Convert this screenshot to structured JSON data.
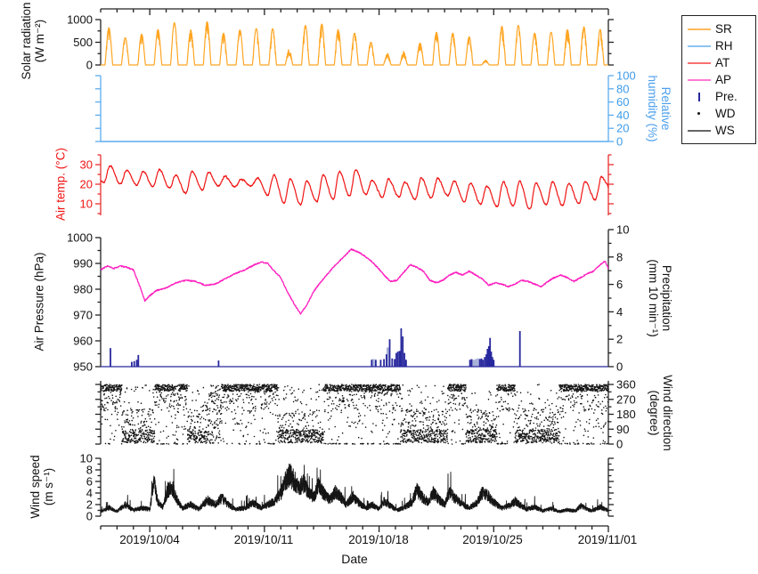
{
  "figure_title": "",
  "colors": {
    "sr": "#FFA522",
    "rh": "#5CACF0",
    "at": "#F01414",
    "ap": "#FF1FBF",
    "precip": "#28289E",
    "precip_light": "#A9B2D8",
    "wd": "#151515",
    "ws": "#151515",
    "axis": "#222222"
  },
  "axes_titles": {
    "sr_line1": "Solar radiation",
    "sr_line2": "(W m⁻²)",
    "rh_line1": "Relative",
    "rh_line2": "humidity (%)",
    "at": "Air temp. (°C)",
    "ap": "Air Pressure (hPa)",
    "pre_line1": "Precipitation",
    "pre_line2": "(mm 10 min⁻¹)",
    "wd_line1": "Wind direction",
    "wd_line2": "(degree)",
    "ws_line1": "Wind speed",
    "ws_line2": "(m s⁻¹)",
    "x": "Date"
  },
  "legend": {
    "items": [
      {
        "label": "SR",
        "marker": "line",
        "color": "#FFB85C"
      },
      {
        "label": "RH",
        "marker": "line",
        "color": "#8CC4F2"
      },
      {
        "label": "AT",
        "marker": "line",
        "color": "#F87070"
      },
      {
        "label": "AP",
        "marker": "line",
        "color": "#FF7AD4"
      },
      {
        "label": "Pre.",
        "marker": "vbar",
        "color": "#28289E"
      },
      {
        "label": "WD",
        "marker": "dot",
        "color": "#151515"
      },
      {
        "label": "WS",
        "marker": "line",
        "color": "#666666"
      }
    ]
  },
  "chart_data": {
    "type": "multi-panel-line",
    "x_axis": {
      "label": "Date",
      "start_date": "2019/10/01",
      "end_date": "2019/11/01",
      "tick_labels": [
        "2019/10/04",
        "2019/10/11",
        "2019/10/18",
        "2019/10/25",
        "2019/11/01"
      ],
      "tick_days": [
        3,
        10,
        17,
        24,
        31
      ],
      "span_days": 31,
      "minor_tick_interval_days": 1
    },
    "panels": {
      "solar_radiation": {
        "label": "Solar radiation (W m⁻²)",
        "ylim": [
          0,
          1000
        ],
        "yticks": [
          0,
          500,
          1000
        ],
        "yticks_minor": [
          250,
          750
        ],
        "axis_side": "left",
        "description": "Diurnal solar radiation peaks, one per day, zero at night",
        "daily_peak": [
          820,
          600,
          680,
          780,
          930,
          770,
          950,
          700,
          770,
          800,
          800,
          350,
          870,
          900,
          780,
          700,
          500,
          260,
          300,
          480,
          720,
          700,
          620,
          110,
          850,
          870,
          700,
          720,
          780,
          840,
          780
        ]
      },
      "relative_humidity": {
        "label": "Relative humidity (%)",
        "ylim": [
          0,
          100
        ],
        "yticks": [
          0,
          20,
          40,
          60,
          80,
          100
        ],
        "axis_side": "right",
        "series_constant": 0,
        "description": "Flat line at 0 % across the whole period"
      },
      "air_temperature": {
        "label": "Air temp. (°C)",
        "ylim_ticks": [
          10,
          20,
          30
        ],
        "yticks_minor": [
          5,
          15,
          25,
          35
        ],
        "axis_side": "left",
        "daily_min": [
          21,
          20,
          19.5,
          19,
          18,
          15.5,
          17,
          19,
          18.5,
          19,
          14.5,
          10.5,
          9.5,
          11,
          12.5,
          14,
          14.5,
          13.5,
          13.5,
          12.5,
          13,
          14,
          11,
          10,
          8.5,
          9,
          7,
          9.5,
          9,
          10,
          12
        ],
        "daily_max": [
          29.5,
          27,
          26.5,
          27.5,
          24.5,
          26.5,
          26,
          24,
          22.5,
          23,
          24.5,
          22.5,
          21.5,
          24.5,
          26.5,
          27.5,
          22,
          22.5,
          21,
          23,
          23,
          21.5,
          20.5,
          19,
          21,
          21.5,
          20.5,
          21,
          20.5,
          21.5,
          23.5
        ]
      },
      "air_pressure": {
        "label": "Air Pressure (hPa)",
        "ylim": [
          950,
          1000
        ],
        "yticks": [
          950,
          960,
          970,
          980,
          990,
          1000
        ],
        "axis_side": "left",
        "control_points": [
          [
            0,
            987.5
          ],
          [
            0.4,
            989
          ],
          [
            0.8,
            988
          ],
          [
            1.2,
            989
          ],
          [
            1.6,
            988.5
          ],
          [
            2,
            987.5
          ],
          [
            2.4,
            981
          ],
          [
            2.7,
            975.5
          ],
          [
            3,
            977.5
          ],
          [
            3.4,
            979.5
          ],
          [
            4,
            980.5
          ],
          [
            4.6,
            982.5
          ],
          [
            5.2,
            983.5
          ],
          [
            5.8,
            983
          ],
          [
            6.4,
            981.5
          ],
          [
            7,
            982
          ],
          [
            7.6,
            984
          ],
          [
            8.2,
            986
          ],
          [
            8.8,
            987.5
          ],
          [
            9.4,
            989.5
          ],
          [
            9.8,
            990.5
          ],
          [
            10.2,
            990
          ],
          [
            10.6,
            987
          ],
          [
            11,
            984.5
          ],
          [
            11.4,
            979
          ],
          [
            11.8,
            974.5
          ],
          [
            12.2,
            970.5
          ],
          [
            12.6,
            974
          ],
          [
            13,
            979
          ],
          [
            13.4,
            982.5
          ],
          [
            13.8,
            985.5
          ],
          [
            14.2,
            988.5
          ],
          [
            14.6,
            991
          ],
          [
            15,
            993.5
          ],
          [
            15.3,
            995.5
          ],
          [
            15.7,
            994.5
          ],
          [
            16.1,
            993
          ],
          [
            16.5,
            991
          ],
          [
            16.9,
            988.5
          ],
          [
            17.3,
            985.5
          ],
          [
            17.7,
            983
          ],
          [
            18.1,
            983.5
          ],
          [
            18.5,
            986.5
          ],
          [
            18.9,
            989.5
          ],
          [
            19.3,
            988.5
          ],
          [
            19.7,
            987
          ],
          [
            20.1,
            983.5
          ],
          [
            20.5,
            982.5
          ],
          [
            20.9,
            983.5
          ],
          [
            21.3,
            985.5
          ],
          [
            21.7,
            986.5
          ],
          [
            22.1,
            985.5
          ],
          [
            22.5,
            987
          ],
          [
            22.9,
            985.5
          ],
          [
            23.3,
            984
          ],
          [
            23.7,
            981.5
          ],
          [
            24.1,
            982.5
          ],
          [
            24.5,
            982
          ],
          [
            24.9,
            981
          ],
          [
            25.3,
            982
          ],
          [
            25.7,
            983.5
          ],
          [
            26.1,
            983
          ],
          [
            26.5,
            982
          ],
          [
            26.9,
            981
          ],
          [
            27.3,
            983
          ],
          [
            27.7,
            984.5
          ],
          [
            28.1,
            985.5
          ],
          [
            28.5,
            984.5
          ],
          [
            28.9,
            983
          ],
          [
            29.3,
            984.5
          ],
          [
            29.7,
            986
          ],
          [
            30.1,
            987
          ],
          [
            30.5,
            989.5
          ],
          [
            30.8,
            991
          ],
          [
            31,
            988
          ]
        ]
      },
      "precipitation": {
        "label": "Precipitation (mm 10 min⁻¹)",
        "ylim": [
          0,
          10
        ],
        "yticks": [
          0,
          2,
          4,
          6,
          8,
          10
        ],
        "yticks_minor": [
          1,
          3,
          5,
          7,
          9
        ],
        "axis_side": "right",
        "events_day_mm_light": [
          [
            0.6,
            1.35,
            0
          ],
          [
            1.9,
            0.35,
            0
          ],
          [
            2.05,
            0.4,
            0
          ],
          [
            2.2,
            0.5,
            0
          ],
          [
            2.3,
            0.85,
            0
          ],
          [
            7.2,
            0.45,
            0
          ],
          [
            16.55,
            0.5,
            0
          ],
          [
            16.65,
            0.55,
            1
          ],
          [
            16.8,
            0.5,
            0
          ],
          [
            17.1,
            0.5,
            0
          ],
          [
            17.3,
            0.55,
            0
          ],
          [
            17.45,
            0.9,
            0
          ],
          [
            17.55,
            1.4,
            1
          ],
          [
            17.65,
            2.0,
            0
          ],
          [
            17.8,
            0.6,
            0
          ],
          [
            17.95,
            0.55,
            0
          ],
          [
            18.05,
            1.0,
            0
          ],
          [
            18.15,
            1.1,
            0
          ],
          [
            18.25,
            1.15,
            0
          ],
          [
            18.35,
            2.8,
            0
          ],
          [
            18.45,
            2.2,
            0
          ],
          [
            18.55,
            1.0,
            0
          ],
          [
            18.65,
            0.5,
            0
          ],
          [
            22.55,
            0.5,
            0
          ],
          [
            22.65,
            0.55,
            0
          ],
          [
            22.8,
            0.5,
            1
          ],
          [
            22.95,
            0.55,
            1
          ],
          [
            23.05,
            0.6,
            1
          ],
          [
            23.15,
            0.55,
            0
          ],
          [
            23.25,
            0.6,
            0
          ],
          [
            23.35,
            0.5,
            0
          ],
          [
            23.45,
            0.7,
            0
          ],
          [
            23.55,
            0.9,
            0
          ],
          [
            23.62,
            1.3,
            0
          ],
          [
            23.7,
            1.5,
            0
          ],
          [
            23.78,
            2.1,
            0
          ],
          [
            23.85,
            1.1,
            0
          ],
          [
            23.92,
            0.7,
            0
          ],
          [
            24.0,
            0.5,
            0
          ],
          [
            25.6,
            2.6,
            0
          ]
        ]
      },
      "wind_direction": {
        "label": "Wind direction (degree)",
        "ylim": [
          0,
          360
        ],
        "yticks": [
          0,
          90,
          180,
          270,
          360
        ],
        "yticks_minor": [
          45,
          135,
          225,
          315
        ],
        "axis_side": "right",
        "regimes": [
          {
            "from": 0,
            "to": 1.3,
            "band": "north"
          },
          {
            "from": 1.3,
            "to": 3.3,
            "band": "south"
          },
          {
            "from": 3.3,
            "to": 5.3,
            "band": "north"
          },
          {
            "from": 5.3,
            "to": 6.6,
            "band": "south"
          },
          {
            "from": 6.6,
            "to": 7.4,
            "band": "mixed"
          },
          {
            "from": 7.4,
            "to": 10.8,
            "band": "north"
          },
          {
            "from": 10.8,
            "to": 13.6,
            "band": "south"
          },
          {
            "from": 13.6,
            "to": 18.3,
            "band": "north"
          },
          {
            "from": 18.3,
            "to": 21.2,
            "band": "south"
          },
          {
            "from": 21.2,
            "to": 22.3,
            "band": "north"
          },
          {
            "from": 22.3,
            "to": 24.2,
            "band": "south"
          },
          {
            "from": 24.2,
            "to": 25.3,
            "band": "north"
          },
          {
            "from": 25.3,
            "to": 28,
            "band": "south"
          },
          {
            "from": 28,
            "to": 31,
            "band": "north"
          }
        ]
      },
      "wind_speed": {
        "label": "Wind speed (m s⁻¹)",
        "ylim": [
          0,
          10
        ],
        "yticks": [
          0,
          2,
          4,
          6,
          8,
          10
        ],
        "yticks_minor": [
          1,
          3,
          5,
          7,
          9
        ],
        "axis_side": "left",
        "control_points": [
          [
            0,
            0.8
          ],
          [
            0.5,
            1.5
          ],
          [
            1,
            0.8
          ],
          [
            1.5,
            2.0
          ],
          [
            2,
            1.0
          ],
          [
            2.5,
            1.4
          ],
          [
            3,
            1.2
          ],
          [
            3.25,
            5.8
          ],
          [
            3.5,
            2.4
          ],
          [
            3.8,
            1.5
          ],
          [
            4.1,
            4.6
          ],
          [
            4.4,
            4.8
          ],
          [
            4.7,
            2.6
          ],
          [
            5,
            1.4
          ],
          [
            5.5,
            2.0
          ],
          [
            6,
            1.2
          ],
          [
            6.5,
            2.8
          ],
          [
            7,
            2.0
          ],
          [
            7.4,
            3.1
          ],
          [
            7.8,
            2.0
          ],
          [
            8.2,
            1.2
          ],
          [
            8.8,
            1.4
          ],
          [
            9.3,
            2.3
          ],
          [
            9.8,
            1.4
          ],
          [
            10.2,
            2.0
          ],
          [
            10.6,
            2.6
          ],
          [
            11,
            3.8
          ],
          [
            11.2,
            5.5
          ],
          [
            11.5,
            7.2
          ],
          [
            11.8,
            6.2
          ],
          [
            12.1,
            5.0
          ],
          [
            12.4,
            5.6
          ],
          [
            12.7,
            4.2
          ],
          [
            13,
            3.2
          ],
          [
            13.3,
            5.2
          ],
          [
            13.6,
            4.0
          ],
          [
            14,
            2.8
          ],
          [
            14.3,
            4.2
          ],
          [
            14.7,
            3.2
          ],
          [
            15,
            2.0
          ],
          [
            15.4,
            3.4
          ],
          [
            15.8,
            2.2
          ],
          [
            16.2,
            1.4
          ],
          [
            16.6,
            2.0
          ],
          [
            17,
            1.2
          ],
          [
            17.3,
            2.6
          ],
          [
            17.7,
            1.8
          ],
          [
            18.1,
            1.0
          ],
          [
            18.6,
            1.6
          ],
          [
            19,
            2.4
          ],
          [
            19.3,
            4.6
          ],
          [
            19.6,
            3.4
          ],
          [
            20,
            2.4
          ],
          [
            20.3,
            4.0
          ],
          [
            20.7,
            2.8
          ],
          [
            21,
            2.0
          ],
          [
            21.3,
            4.2
          ],
          [
            21.6,
            3.2
          ],
          [
            22,
            2.2
          ],
          [
            22.5,
            1.4
          ],
          [
            23,
            2.4
          ],
          [
            23.3,
            4.0
          ],
          [
            23.6,
            3.6
          ],
          [
            24,
            2.4
          ],
          [
            24.5,
            1.4
          ],
          [
            25,
            1.8
          ],
          [
            25.3,
            2.6
          ],
          [
            25.7,
            1.8
          ],
          [
            26,
            1.2
          ],
          [
            26.5,
            1.6
          ],
          [
            27,
            0.9
          ],
          [
            27.5,
            1.3
          ],
          [
            28,
            0.8
          ],
          [
            28.5,
            1.1
          ],
          [
            29,
            0.9
          ],
          [
            29.3,
            1.8
          ],
          [
            29.7,
            1.2
          ],
          [
            30,
            0.9
          ],
          [
            30.5,
            1.6
          ],
          [
            31,
            1.0
          ]
        ]
      }
    }
  }
}
